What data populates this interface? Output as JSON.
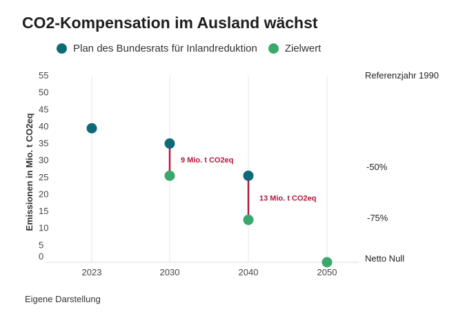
{
  "title": "CO2-Kompensation im Ausland wächst",
  "source": "Eigene Darstellung",
  "colors": {
    "plan": "#0e6a78",
    "ziel": "#3aa76d",
    "diff": "#b3173a",
    "grid": "#e6e6e6"
  },
  "chart_data": {
    "type": "scatter",
    "title": "CO2-Kompensation im Ausland wächst",
    "xlabel": "",
    "ylabel": "Emissionen in Mio. t CO2eq",
    "ylim": [
      0,
      55
    ],
    "yticks": [
      0,
      5,
      10,
      15,
      20,
      25,
      30,
      35,
      40,
      45,
      50,
      55
    ],
    "categories": [
      "2023",
      "2030",
      "2040",
      "2050"
    ],
    "series": [
      {
        "name": "Plan des Bundesrats für Inlandreduktion",
        "key": "plan",
        "values": [
          39.5,
          35,
          25.5,
          null
        ]
      },
      {
        "name": "Zielwert",
        "key": "ziel",
        "values": [
          null,
          25.5,
          12.5,
          0
        ]
      }
    ],
    "differences": [
      {
        "category": "2030",
        "from": 35,
        "to": 25.5,
        "label": "9 Mio. t CO2eq"
      },
      {
        "category": "2040",
        "from": 25.5,
        "to": 12.5,
        "label": "13 Mio. t CO2eq"
      }
    ],
    "reference_labels": [
      {
        "value": 55,
        "label": "Referenzjahr 1990"
      },
      {
        "value": 28,
        "label": "-50%"
      },
      {
        "value": 13,
        "label": "-75%"
      },
      {
        "value": 0,
        "label": "Netto Null"
      }
    ],
    "grid": "vertical",
    "legend": "top-left"
  }
}
